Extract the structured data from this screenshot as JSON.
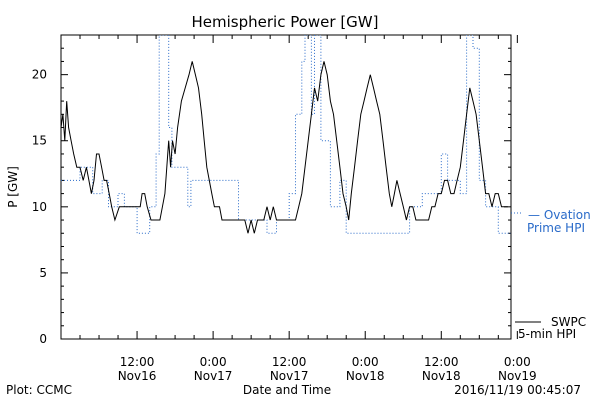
{
  "chart_data": {
    "type": "line",
    "title": "Hemispheric Power [GW]",
    "xlabel": "Date and Time",
    "ylabel": "P [GW]",
    "ylim": [
      0,
      23
    ],
    "xlim_hours": [
      -24.0,
      47.0
    ],
    "y_ticks": [
      0,
      5,
      10,
      15,
      20
    ],
    "x_ticks": [
      {
        "h": -12,
        "time": "12:00",
        "day": "Nov16"
      },
      {
        "h": 0,
        "time": "0:00",
        "day": "Nov17"
      },
      {
        "h": 12,
        "time": "12:00",
        "day": "Nov17"
      },
      {
        "h": 24,
        "time": "0:00",
        "day": "Nov18"
      },
      {
        "h": 36,
        "time": "12:00",
        "day": "Nov18"
      },
      {
        "h": 48,
        "time": "0:00",
        "day": "Nov19"
      }
    ],
    "grid": false,
    "series": [
      {
        "name": "SWPC 5-min HPI",
        "color": "#000000",
        "style": "solid",
        "points": [
          [
            -24.0,
            16
          ],
          [
            -23.7,
            17
          ],
          [
            -23.4,
            15
          ],
          [
            -23.1,
            18
          ],
          [
            -22.8,
            16
          ],
          [
            -22.4,
            15
          ],
          [
            -22.0,
            14
          ],
          [
            -21.5,
            13
          ],
          [
            -21.0,
            13
          ],
          [
            -20.5,
            12
          ],
          [
            -20.0,
            13
          ],
          [
            -19.6,
            12
          ],
          [
            -19.2,
            11
          ],
          [
            -18.8,
            12
          ],
          [
            -18.4,
            14
          ],
          [
            -18.0,
            14
          ],
          [
            -17.6,
            13
          ],
          [
            -17.2,
            12
          ],
          [
            -16.8,
            12
          ],
          [
            -16.4,
            11
          ],
          [
            -16.0,
            10
          ],
          [
            -15.5,
            9
          ],
          [
            -14.8,
            10
          ],
          [
            -13.5,
            10
          ],
          [
            -12.5,
            10
          ],
          [
            -11.5,
            10
          ],
          [
            -11.2,
            11
          ],
          [
            -10.8,
            11
          ],
          [
            -10.4,
            10
          ],
          [
            -9.8,
            9
          ],
          [
            -9.2,
            9
          ],
          [
            -8.8,
            9
          ],
          [
            -8.4,
            9
          ],
          [
            -8.0,
            10
          ],
          [
            -7.6,
            11
          ],
          [
            -7.3,
            13
          ],
          [
            -7.0,
            15
          ],
          [
            -6.7,
            13
          ],
          [
            -6.4,
            15
          ],
          [
            -6.0,
            14
          ],
          [
            -5.6,
            16
          ],
          [
            -5.0,
            18
          ],
          [
            -4.4,
            19
          ],
          [
            -3.8,
            20
          ],
          [
            -3.3,
            21
          ],
          [
            -2.8,
            20
          ],
          [
            -2.3,
            19
          ],
          [
            -1.8,
            17
          ],
          [
            -1.4,
            15
          ],
          [
            -1.0,
            13
          ],
          [
            -0.6,
            12
          ],
          [
            -0.2,
            11
          ],
          [
            0.2,
            10
          ],
          [
            0.6,
            10
          ],
          [
            1.0,
            10
          ],
          [
            1.4,
            9
          ],
          [
            2.0,
            9
          ],
          [
            3.0,
            9
          ],
          [
            4.0,
            9
          ],
          [
            5.0,
            9
          ],
          [
            5.5,
            8
          ],
          [
            6.0,
            9
          ],
          [
            6.5,
            8
          ],
          [
            7.0,
            9
          ],
          [
            8.0,
            9
          ],
          [
            8.5,
            10
          ],
          [
            9.0,
            9
          ],
          [
            9.5,
            10
          ],
          [
            10.0,
            9
          ],
          [
            11.0,
            9
          ],
          [
            12.0,
            9
          ],
          [
            13.0,
            9
          ],
          [
            13.5,
            10
          ],
          [
            14.0,
            11
          ],
          [
            14.5,
            13
          ],
          [
            15.0,
            15
          ],
          [
            15.5,
            17
          ],
          [
            16.0,
            19
          ],
          [
            16.5,
            18
          ],
          [
            17.0,
            20
          ],
          [
            17.5,
            21
          ],
          [
            18.0,
            20
          ],
          [
            18.5,
            18
          ],
          [
            19.0,
            17
          ],
          [
            19.5,
            15
          ],
          [
            20.0,
            13
          ],
          [
            20.5,
            11
          ],
          [
            21.0,
            10
          ],
          [
            21.4,
            9
          ],
          [
            21.8,
            11
          ],
          [
            22.3,
            13
          ],
          [
            22.8,
            15
          ],
          [
            23.3,
            17
          ],
          [
            23.8,
            18
          ],
          [
            24.3,
            19
          ],
          [
            24.8,
            20
          ],
          [
            25.3,
            19
          ],
          [
            25.8,
            18
          ],
          [
            26.3,
            17
          ],
          [
            26.8,
            15
          ],
          [
            27.3,
            13
          ],
          [
            27.8,
            11
          ],
          [
            28.2,
            10
          ],
          [
            28.6,
            11
          ],
          [
            29.0,
            12
          ],
          [
            29.5,
            11
          ],
          [
            30.0,
            10
          ],
          [
            30.5,
            9
          ],
          [
            31.0,
            10
          ],
          [
            31.5,
            10
          ],
          [
            32.0,
            9
          ],
          [
            33.0,
            9
          ],
          [
            34.0,
            9
          ],
          [
            34.5,
            10
          ],
          [
            35.0,
            10
          ],
          [
            35.5,
            11
          ],
          [
            36.0,
            11
          ],
          [
            36.5,
            12
          ],
          [
            37.0,
            12
          ],
          [
            37.5,
            11
          ],
          [
            38.0,
            11
          ],
          [
            38.5,
            12
          ],
          [
            39.0,
            13
          ],
          [
            39.5,
            15
          ],
          [
            40.0,
            17
          ],
          [
            40.5,
            19
          ],
          [
            41.0,
            18
          ],
          [
            41.5,
            17
          ],
          [
            42.0,
            15
          ],
          [
            42.5,
            13
          ],
          [
            43.0,
            11
          ],
          [
            43.5,
            11
          ],
          [
            44.0,
            10
          ],
          [
            44.5,
            11
          ],
          [
            45.0,
            11
          ],
          [
            45.5,
            10
          ],
          [
            46.0,
            10
          ],
          [
            46.5,
            10
          ]
        ]
      },
      {
        "name": "Ovation Prime HPI",
        "color": "#2a6bc9",
        "style": "dotted",
        "points": [
          [
            -24.0,
            12
          ],
          [
            -21.0,
            12
          ],
          [
            -21.0,
            13
          ],
          [
            -19.0,
            13
          ],
          [
            -19.0,
            11
          ],
          [
            -17.5,
            11
          ],
          [
            -17.5,
            12
          ],
          [
            -16.5,
            12
          ],
          [
            -16.5,
            10
          ],
          [
            -15.0,
            10
          ],
          [
            -15.0,
            11
          ],
          [
            -14.0,
            11
          ],
          [
            -14.0,
            10
          ],
          [
            -12.0,
            10
          ],
          [
            -12.0,
            8
          ],
          [
            -10.0,
            8
          ],
          [
            -10.0,
            10
          ],
          [
            -9.0,
            10
          ],
          [
            -9.0,
            14
          ],
          [
            -8.5,
            14
          ],
          [
            -8.5,
            23
          ],
          [
            -7.0,
            23
          ],
          [
            -7.0,
            16
          ],
          [
            -6.5,
            16
          ],
          [
            -6.5,
            13
          ],
          [
            -4.0,
            13
          ],
          [
            -4.0,
            10
          ],
          [
            -3.5,
            10
          ],
          [
            -3.5,
            12
          ],
          [
            4.0,
            12
          ],
          [
            4.0,
            9
          ],
          [
            8.5,
            9
          ],
          [
            8.5,
            8
          ],
          [
            10.0,
            8
          ],
          [
            10.0,
            9
          ],
          [
            12.0,
            9
          ],
          [
            12.0,
            11
          ],
          [
            13.0,
            11
          ],
          [
            13.0,
            17
          ],
          [
            14.0,
            17
          ],
          [
            14.0,
            21
          ],
          [
            14.5,
            21
          ],
          [
            14.5,
            23
          ],
          [
            15.5,
            23
          ],
          [
            15.5,
            17
          ],
          [
            16.0,
            17
          ],
          [
            16.0,
            23
          ],
          [
            17.0,
            23
          ],
          [
            17.0,
            15
          ],
          [
            18.5,
            15
          ],
          [
            18.5,
            10
          ],
          [
            20.0,
            10
          ],
          [
            20.0,
            12
          ],
          [
            21.0,
            12
          ],
          [
            21.0,
            8
          ],
          [
            31.0,
            8
          ],
          [
            31.0,
            10
          ],
          [
            33.0,
            10
          ],
          [
            33.0,
            11
          ],
          [
            36.0,
            11
          ],
          [
            36.0,
            14
          ],
          [
            37.0,
            14
          ],
          [
            37.0,
            12
          ],
          [
            39.0,
            12
          ],
          [
            39.0,
            11
          ],
          [
            40.0,
            11
          ],
          [
            40.0,
            23
          ],
          [
            41.0,
            23
          ],
          [
            41.0,
            22
          ],
          [
            42.0,
            22
          ],
          [
            42.0,
            12
          ],
          [
            43.0,
            12
          ],
          [
            43.0,
            10
          ],
          [
            45.0,
            10
          ],
          [
            45.0,
            8
          ],
          [
            47.0,
            8
          ]
        ]
      }
    ]
  },
  "legend": {
    "ovation_line1": "— Ovation",
    "ovation_line2": "Prime HPI",
    "swpc_line1": "SWPC",
    "swpc_line2": "5-min HPI"
  },
  "footer": {
    "plot_by": "Plot: CCMC",
    "timestamp": "2016/11/19 00:45:07"
  }
}
